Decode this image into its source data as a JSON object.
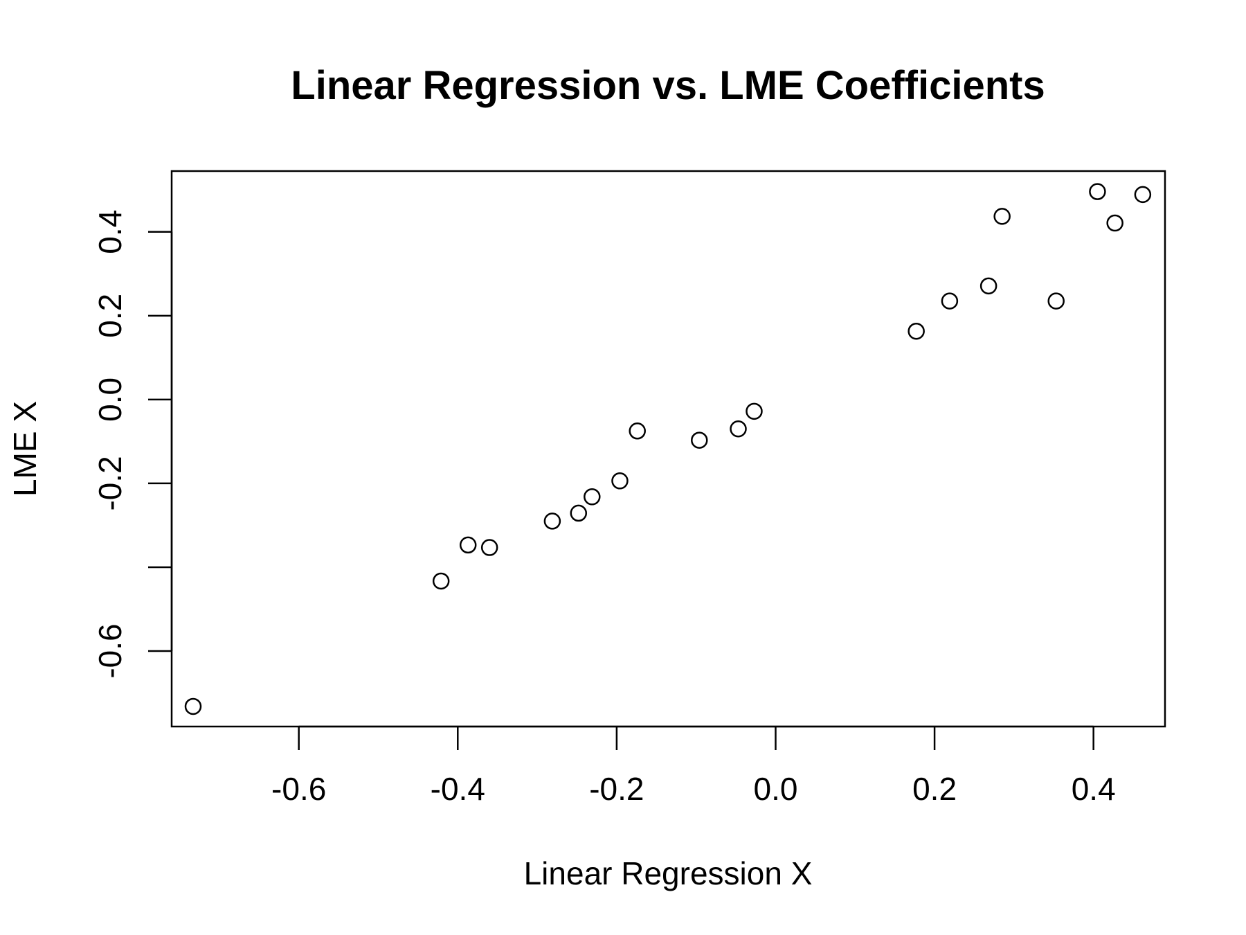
{
  "chart_data": {
    "type": "scatter",
    "title": "Linear Regression vs. LME Coefficients",
    "xlabel": "Linear Regression X",
    "ylabel": "LME X",
    "xlim": [
      -0.76,
      0.49
    ],
    "ylim": [
      -0.78,
      0.545
    ],
    "x_ticks": [
      -0.6,
      -0.4,
      -0.2,
      0.0,
      0.2,
      0.4
    ],
    "x_tick_labels": [
      "-0.6",
      "-0.4",
      "-0.2",
      "0.0",
      "0.2",
      "0.4"
    ],
    "y_ticks": [
      -0.6,
      -0.4,
      -0.2,
      0.0,
      0.2,
      0.4
    ],
    "y_tick_labels": [
      "-0.6",
      "",
      "-0.2",
      "0.0",
      "0.2",
      "0.4"
    ],
    "grid": false,
    "legend": "none",
    "marker": "open-circle",
    "color": "#000000",
    "series": [
      {
        "points": [
          {
            "x": -0.733,
            "y": -0.732
          },
          {
            "x": -0.421,
            "y": -0.433
          },
          {
            "x": -0.387,
            "y": -0.347
          },
          {
            "x": -0.36,
            "y": -0.353
          },
          {
            "x": -0.281,
            "y": -0.29
          },
          {
            "x": -0.248,
            "y": -0.271
          },
          {
            "x": -0.231,
            "y": -0.232
          },
          {
            "x": -0.196,
            "y": -0.194
          },
          {
            "x": -0.174,
            "y": -0.075
          },
          {
            "x": -0.096,
            "y": -0.097
          },
          {
            "x": -0.047,
            "y": -0.07
          },
          {
            "x": -0.027,
            "y": -0.028
          },
          {
            "x": 0.177,
            "y": 0.163
          },
          {
            "x": 0.219,
            "y": 0.235
          },
          {
            "x": 0.268,
            "y": 0.271
          },
          {
            "x": 0.285,
            "y": 0.437
          },
          {
            "x": 0.353,
            "y": 0.235
          },
          {
            "x": 0.405,
            "y": 0.496
          },
          {
            "x": 0.427,
            "y": 0.421
          },
          {
            "x": 0.462,
            "y": 0.489
          }
        ]
      }
    ]
  }
}
